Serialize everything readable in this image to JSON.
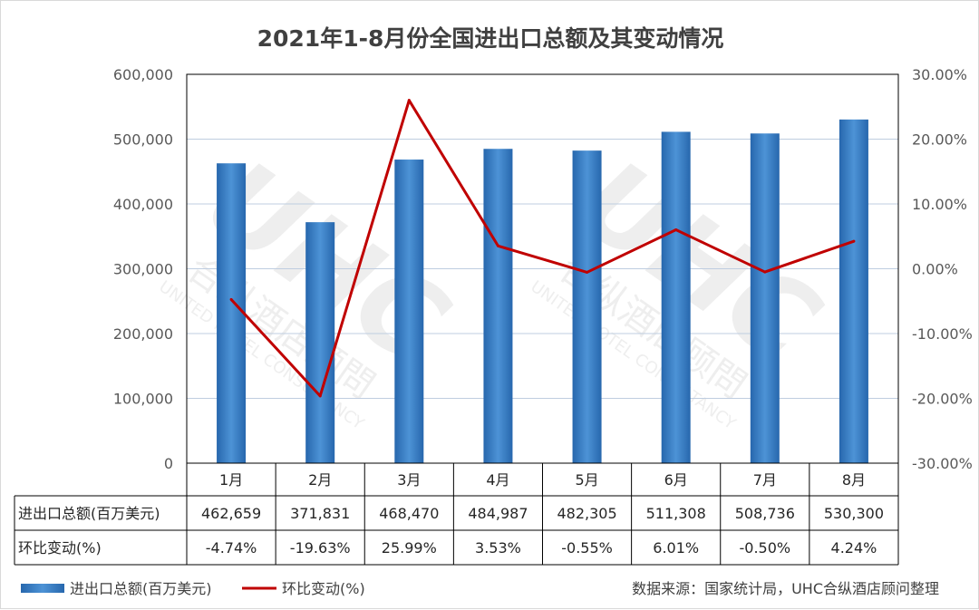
{
  "chart_data": {
    "type": "bar",
    "title": "2021年1-8月份全国进出口总额及其变动情况",
    "categories": [
      "1月",
      "2月",
      "3月",
      "4月",
      "5月",
      "6月",
      "7月",
      "8月"
    ],
    "series": [
      {
        "name": "进出口总额(百万美元)",
        "type": "bar",
        "axis": "left",
        "values": [
          462659,
          371831,
          468470,
          484987,
          482305,
          511308,
          508736,
          530300
        ],
        "labels": [
          "462,659",
          "371,831",
          "468,470",
          "484,987",
          "482,305",
          "511,308",
          "508,736",
          "530,300"
        ]
      },
      {
        "name": "环比变动(%)",
        "type": "line",
        "axis": "right",
        "values": [
          -4.74,
          -19.63,
          25.99,
          3.53,
          -0.55,
          6.01,
          -0.5,
          4.24
        ],
        "labels": [
          "-4.74%",
          "-19.63%",
          "25.99%",
          "3.53%",
          "-0.55%",
          "6.01%",
          "-0.50%",
          "4.24%"
        ]
      }
    ],
    "y_left": {
      "range": [
        0,
        600000
      ],
      "ticks": [
        "0",
        "100,000",
        "200,000",
        "300,000",
        "400,000",
        "500,000",
        "600,000"
      ]
    },
    "y_right": {
      "range": [
        -30,
        30
      ],
      "ticks": [
        "-30.00%",
        "-20.00%",
        "-10.00%",
        "0.00%",
        "10.00%",
        "20.00%",
        "30.00%"
      ]
    },
    "grid": true,
    "legend_position": "bottom-left",
    "data_table": true,
    "source": "数据来源：国家统计局，UHC合纵酒店顾问整理",
    "watermark": [
      "UHC",
      "合纵酒店顾問",
      "UNITED HOTEL CONSULTANCY"
    ],
    "colors": {
      "bar_top": "#2a6bb0",
      "bar_mid": "#4a90d4",
      "bar_bottom": "#2a6bb0",
      "line": "#c00000",
      "grid": "#bfcde0",
      "axis": "#000000"
    }
  }
}
